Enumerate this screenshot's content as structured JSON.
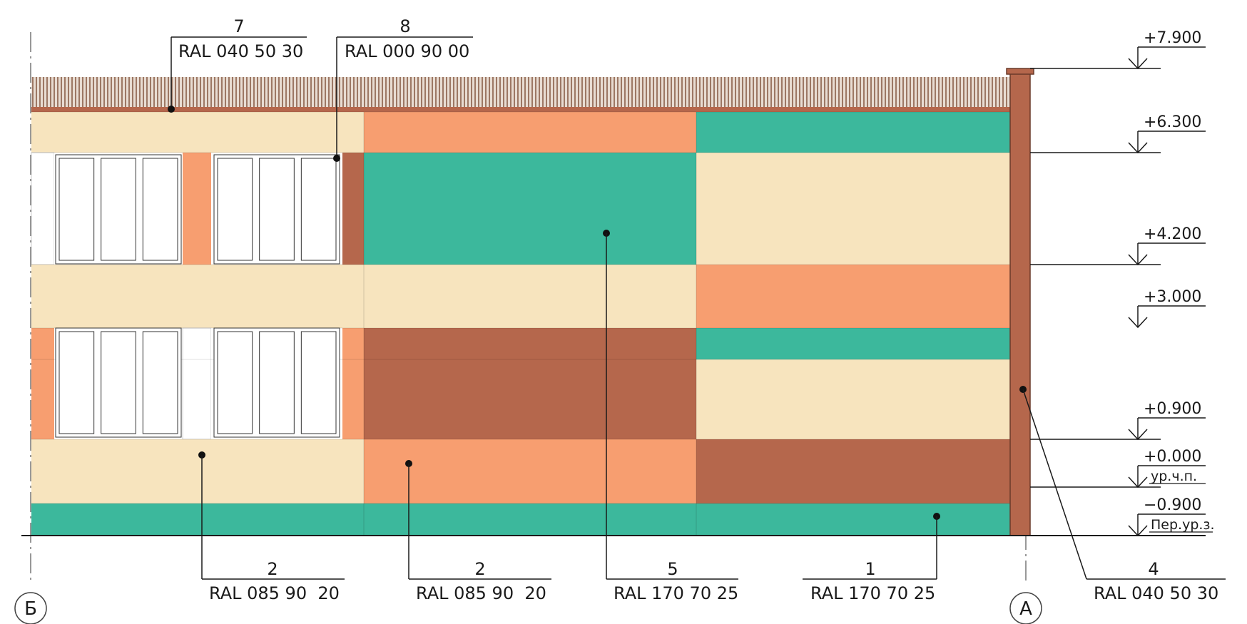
{
  "colors": {
    "cream": "#F7E4BE",
    "peach": "#F79E70",
    "teal": "#3CB89C",
    "brown": "#B5674C",
    "white": "#FFFFFF",
    "roof_hatch": "#9A6E58",
    "line": "#1a1a1a"
  },
  "callouts": {
    "top_left": {
      "number": "7",
      "code": "RAL 040 50 30"
    },
    "top_right": {
      "number": "8",
      "code": "RAL 000 90 00"
    },
    "bottom_1": {
      "number": "2",
      "code": "RAL 085 90  20"
    },
    "bottom_2": {
      "number": "2",
      "code": "RAL 085 90  20"
    },
    "bottom_3": {
      "number": "5",
      "code": "RAL 170 70 25"
    },
    "bottom_4": {
      "number": "1",
      "code": "RAL 170 70 25"
    },
    "bottom_5": {
      "number": "4",
      "code": "RAL 040 50 30"
    }
  },
  "levels": [
    {
      "value": "+7.900",
      "note": ""
    },
    {
      "value": "+6.300",
      "note": ""
    },
    {
      "value": "+4.200",
      "note": ""
    },
    {
      "value": "+3.000",
      "note": ""
    },
    {
      "value": "+0.900",
      "note": ""
    },
    {
      "value": "+0.000",
      "note": "ур.ч.п."
    },
    {
      "value": "−0.900",
      "note": "Пер.ур.з."
    }
  ],
  "axes": {
    "left": "Б",
    "right": "А"
  }
}
